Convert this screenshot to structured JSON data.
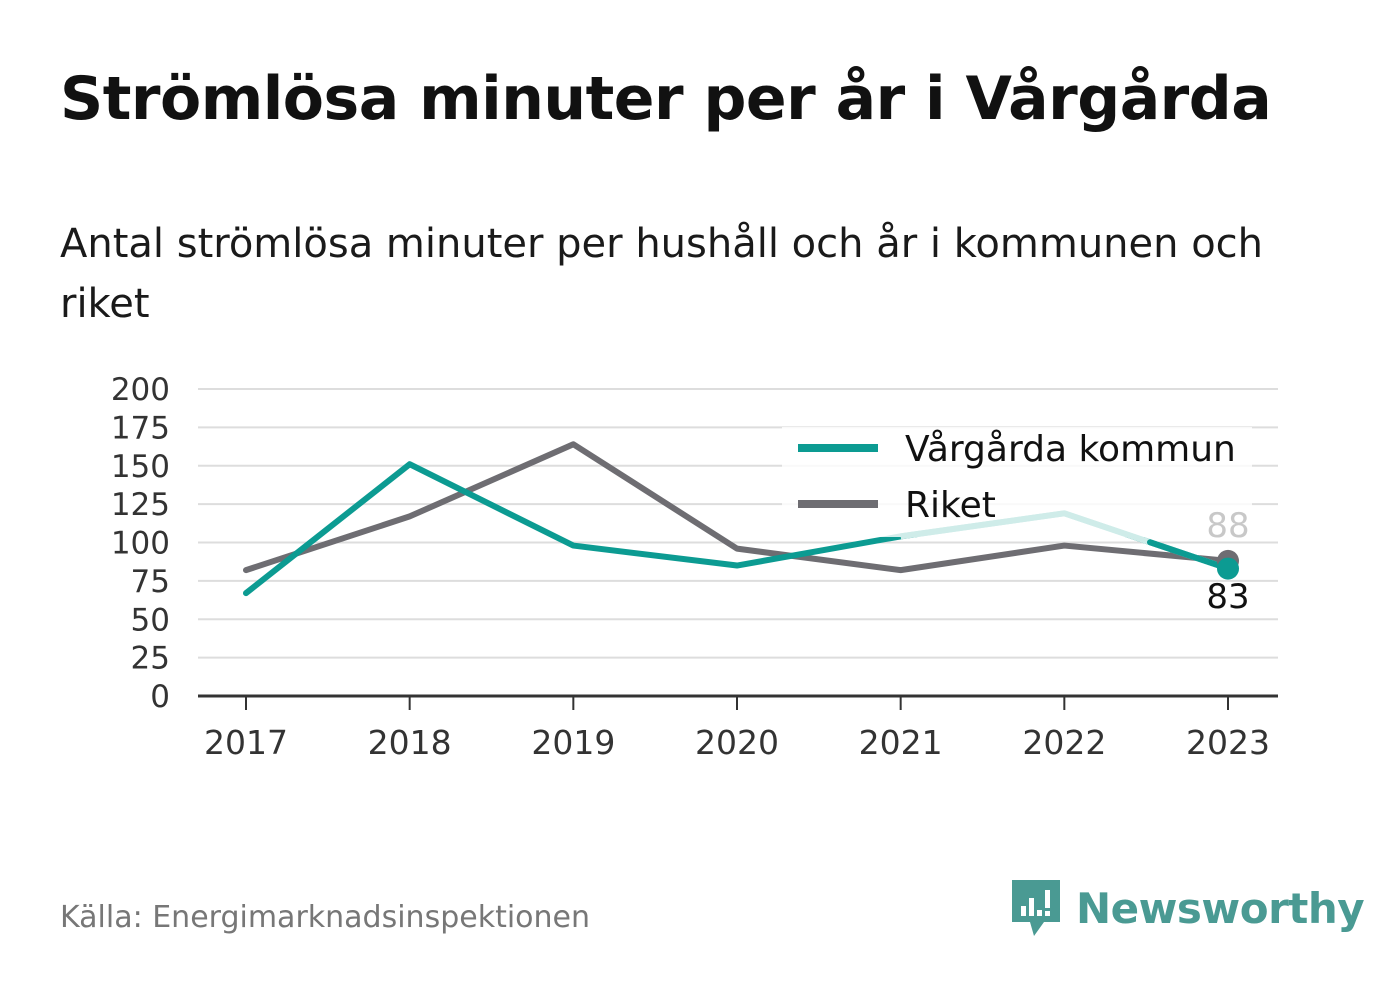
{
  "title": "Strömlösa minuter per år i Vårgårda",
  "subtitle": "Antal strömlösa minuter per hushåll och år i kommunen och riket",
  "source": "Källa: Energimarknadsinspektionen",
  "brand": "Newsworthy",
  "colors": {
    "kommun": "#0c9b92",
    "kommun_faded": "#cfece9",
    "riket": "#6e6d72",
    "grid": "#dddddd",
    "axis": "#333333",
    "faded_label": "#c8c8c8",
    "brand": "#4a9a93"
  },
  "chart_data": {
    "type": "line",
    "x": [
      "2017",
      "2018",
      "2019",
      "2020",
      "2021",
      "2022",
      "2023"
    ],
    "y_ticks": [
      "0",
      "25",
      "50",
      "75",
      "100",
      "125",
      "150",
      "175",
      "200"
    ],
    "ylim": [
      0,
      200
    ],
    "grid": true,
    "legend_position": "top-right",
    "series": [
      {
        "key": "kommun",
        "name": "Vårgårda kommun",
        "values": [
          67,
          151,
          98,
          85,
          104,
          119,
          83
        ]
      },
      {
        "key": "riket",
        "name": "Riket",
        "values": [
          82,
          117,
          164,
          96,
          82,
          98,
          88
        ]
      }
    ],
    "end_labels": {
      "kommun": "83",
      "riket": "88"
    }
  }
}
